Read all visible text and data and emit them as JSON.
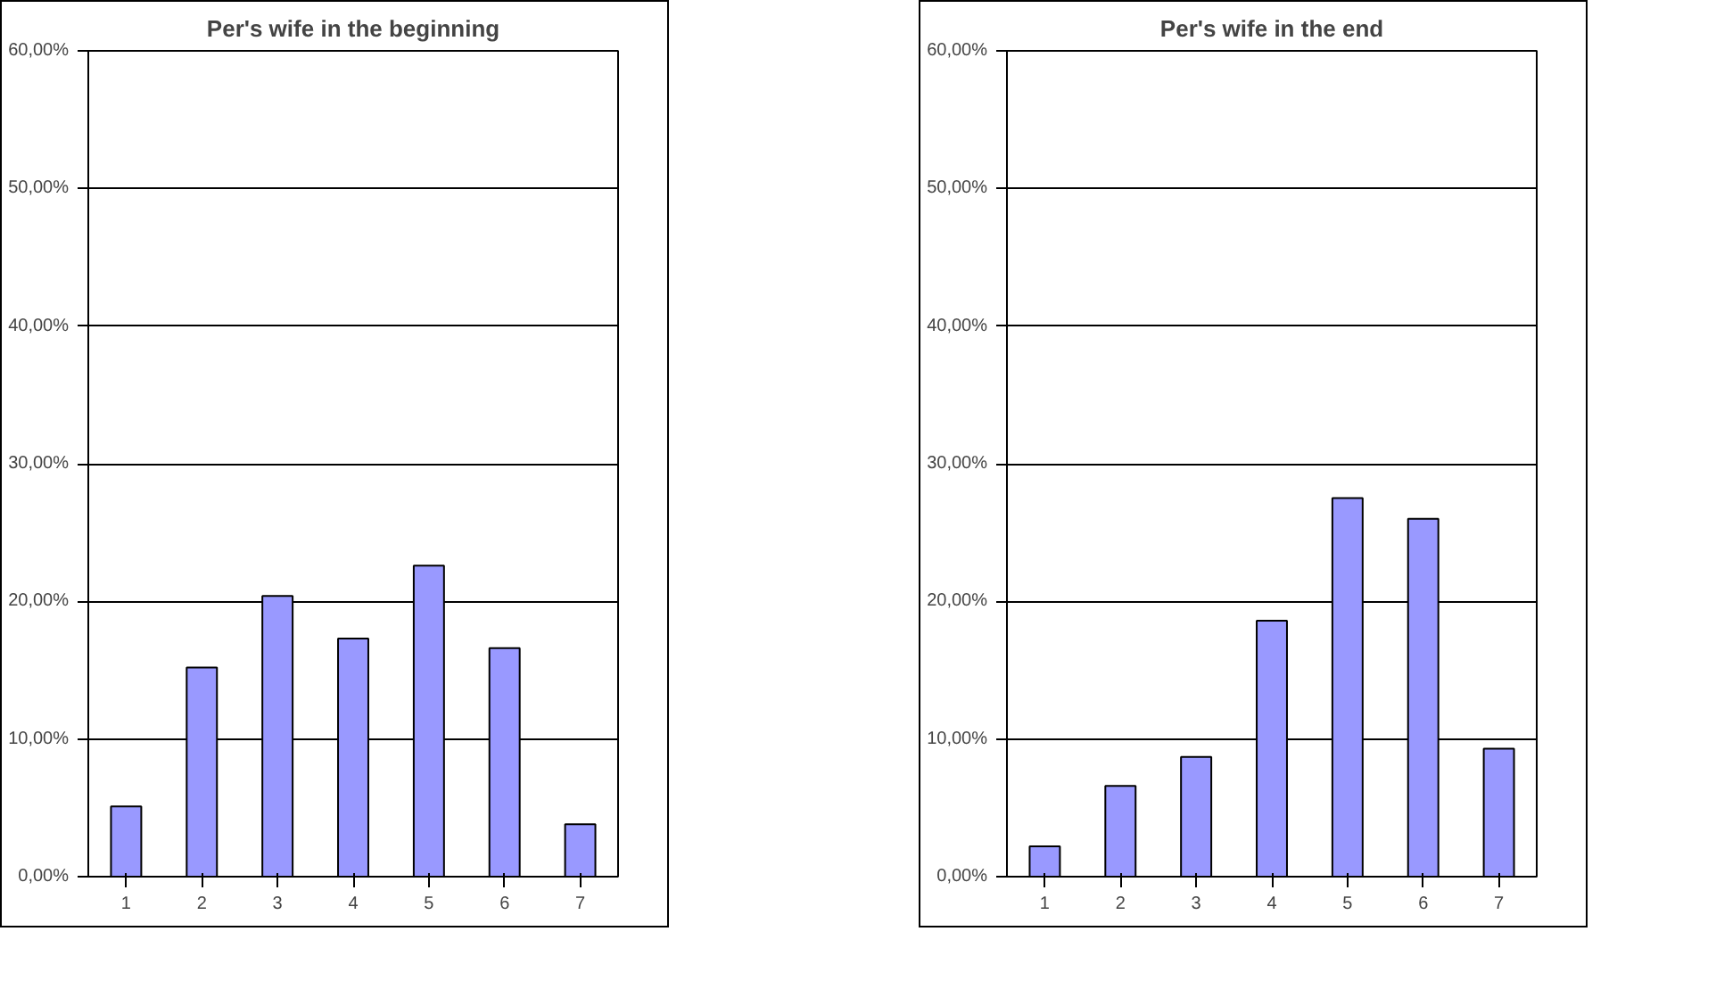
{
  "chart_data": [
    {
      "type": "bar",
      "title": "Per's wife in the beginning",
      "categories": [
        "1",
        "2",
        "3",
        "4",
        "5",
        "6",
        "7"
      ],
      "values": [
        5.1,
        15.2,
        20.4,
        17.3,
        22.6,
        16.6,
        3.8
      ],
      "color": "#9999ff",
      "ylim": [
        0,
        60
      ],
      "yticks": [
        {
          "value": 0,
          "label": "0,00%"
        },
        {
          "value": 10,
          "label": "10,00%"
        },
        {
          "value": 20,
          "label": "20,00%"
        },
        {
          "value": 30,
          "label": "30,00%"
        },
        {
          "value": 40,
          "label": "40,00%"
        },
        {
          "value": 50,
          "label": "50,00%"
        },
        {
          "value": 60,
          "label": "60,00%"
        }
      ],
      "grid": "y"
    },
    {
      "type": "bar",
      "title": "Per's wife in the end",
      "categories": [
        "1",
        "2",
        "3",
        "4",
        "5",
        "6",
        "7"
      ],
      "values": [
        2.2,
        6.6,
        8.7,
        18.6,
        27.5,
        26.0,
        9.3
      ],
      "color": "#9999ff",
      "ylim": [
        0,
        60
      ],
      "yticks": [
        {
          "value": 0,
          "label": "0,00%"
        },
        {
          "value": 10,
          "label": "10,00%"
        },
        {
          "value": 20,
          "label": "20,00%"
        },
        {
          "value": 30,
          "label": "30,00%"
        },
        {
          "value": 40,
          "label": "40,00%"
        },
        {
          "value": 50,
          "label": "50,00%"
        },
        {
          "value": 60,
          "label": "60,00%"
        }
      ],
      "grid": "y"
    }
  ]
}
